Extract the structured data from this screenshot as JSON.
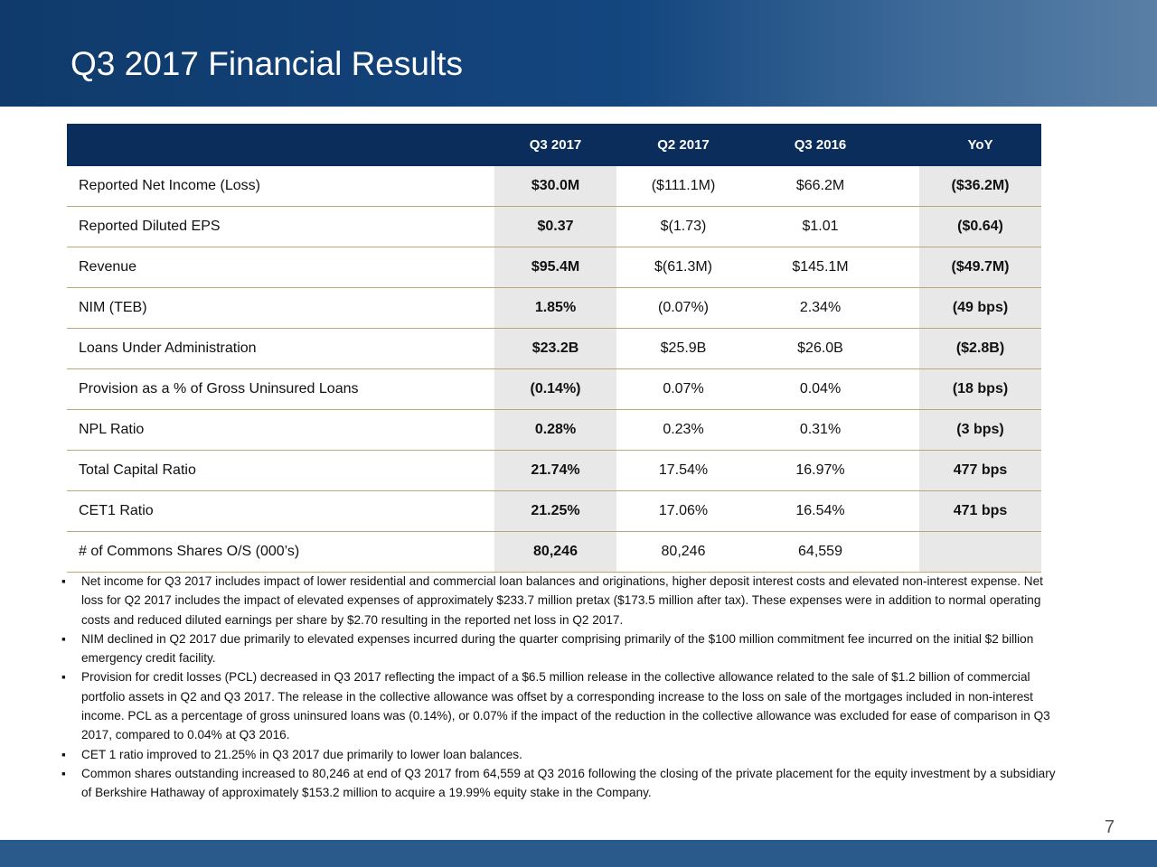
{
  "header": {
    "title": "Q3 2017 Financial Results"
  },
  "table": {
    "columns": [
      "Q3 2017",
      "Q2 2017",
      "Q3 2016",
      "YoY"
    ],
    "rows": [
      [
        "Reported Net Income (Loss)",
        "$30.0M",
        "($111.1M)",
        "$66.2M",
        "($36.2M)"
      ],
      [
        "Reported Diluted EPS",
        "$0.37",
        "$(1.73)",
        "$1.01",
        "($0.64)"
      ],
      [
        "Revenue",
        "$95.4M",
        "$(61.3M)",
        "$145.1M",
        "($49.7M)"
      ],
      [
        "NIM (TEB)",
        "1.85%",
        "(0.07%)",
        "2.34%",
        "(49 bps)"
      ],
      [
        "Loans Under Administration",
        "$23.2B",
        "$25.9B",
        "$26.0B",
        "($2.8B)"
      ],
      [
        "Provision as a % of Gross Uninsured Loans",
        "(0.14%)",
        "0.07%",
        "0.04%",
        "(18 bps)"
      ],
      [
        "NPL Ratio",
        "0.28%",
        "0.23%",
        "0.31%",
        "(3 bps)"
      ],
      [
        "Total Capital Ratio",
        "21.74%",
        "17.54%",
        "16.97%",
        "477 bps"
      ],
      [
        "CET1 Ratio",
        "21.25%",
        "17.06%",
        "16.54%",
        "471 bps"
      ],
      [
        "# of Commons Shares O/S (000’s)",
        "80,246",
        "80,246",
        "64,559"
      ]
    ]
  },
  "bullets": [
    "Net income for Q3 2017 includes impact of lower residential and commercial loan balances and originations, higher deposit interest costs and elevated non-interest expense. Net loss for Q2 2017 includes the impact of elevated expenses of approximately $233.7 million pretax ($173.5 million after tax). These expenses were in addition to normal operating costs and reduced diluted earnings per share by $2.70 resulting in the reported net loss in Q2 2017.",
    "NIM declined in Q2 2017 due primarily to elevated expenses incurred during the quarter comprising primarily of the $100 million commitment fee incurred on the initial $2 billion emergency credit facility.",
    "Provision for credit losses (PCL) decreased in Q3 2017 reflecting the impact of a $6.5 million release in the collective allowance related to the sale of $1.2 billion of commercial portfolio assets in Q2 and Q3 2017. The release in the collective allowance was offset by a corresponding increase to the loss on sale of the mortgages included in non-interest income.  PCL as a percentage of gross uninsured loans was (0.14%), or 0.07% if the impact of the reduction in the collective allowance was excluded for ease of comparison in Q3 2017, compared to 0.04% at Q3 2016.",
    "CET 1 ratio improved to 21.25% in Q3 2017 due primarily to lower loan balances.",
    "Common shares outstanding increased to 80,246 at end of Q3 2017 from 64,559 at Q3 2016 following the closing of the private placement for the equity investment by a subsidiary of Berkshire Hathaway  of approximately $153.2 million to acquire a 19.99% equity stake in the Company."
  ],
  "page_number": "7"
}
